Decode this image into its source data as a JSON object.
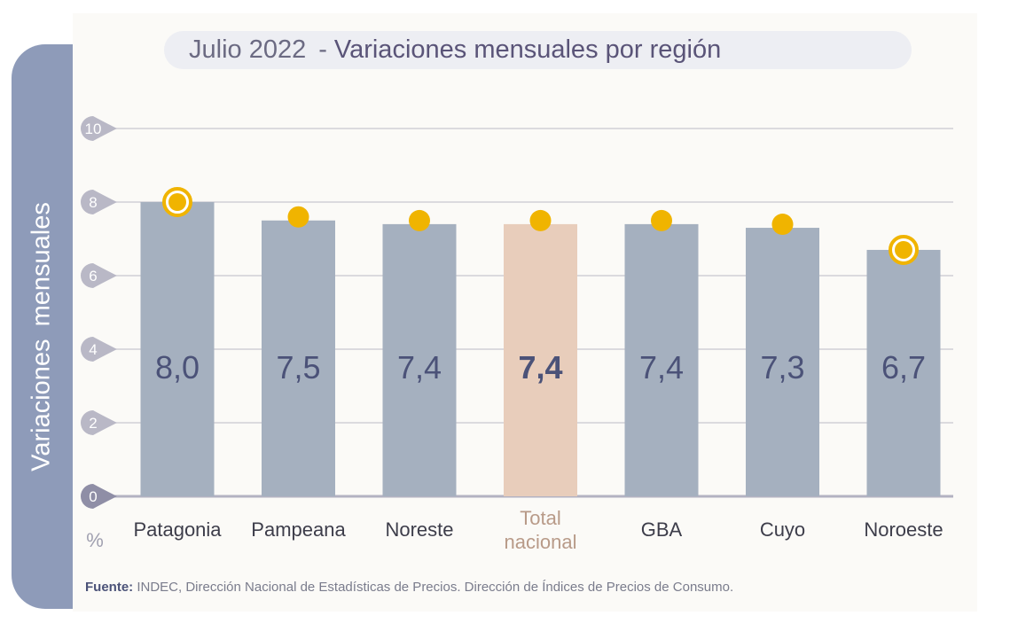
{
  "title": {
    "period": "Julio 2022",
    "separator": "-",
    "main": "Variaciones mensuales por región"
  },
  "source": {
    "label": "Fuente:",
    "text": "INDEC, Dirección Nacional de Estadísticas de Precios. Dirección de Índices de Precios de Consumo."
  },
  "chart_data": {
    "type": "bar",
    "ylabel": "Variaciones mensuales",
    "yunit": "%",
    "ylim": [
      0,
      10
    ],
    "yticks": [
      0,
      2,
      4,
      6,
      8,
      10
    ],
    "grid": true,
    "categories": [
      "Patagonia",
      "Pampeana",
      "Noreste",
      "Total nacional",
      "GBA",
      "Cuyo",
      "Noroeste"
    ],
    "values": [
      8.0,
      7.5,
      7.4,
      7.4,
      7.4,
      7.3,
      6.7
    ],
    "value_labels": [
      "8,0",
      "7,5",
      "7,4",
      "7,4",
      "7,4",
      "7,3",
      "6,7"
    ],
    "highlight_category": "Total nacional",
    "ringed_markers": [
      "Patagonia",
      "Noroeste"
    ],
    "colors": {
      "bar": "#a5b0bf",
      "highlight_bar": "#e8cdbb",
      "marker": "#f0b400",
      "value_text": "#4b5278",
      "highlight_text": "#b89a88",
      "tick_bubble": "#b9b8c6",
      "zero_bubble": "#8f8ea6"
    }
  }
}
